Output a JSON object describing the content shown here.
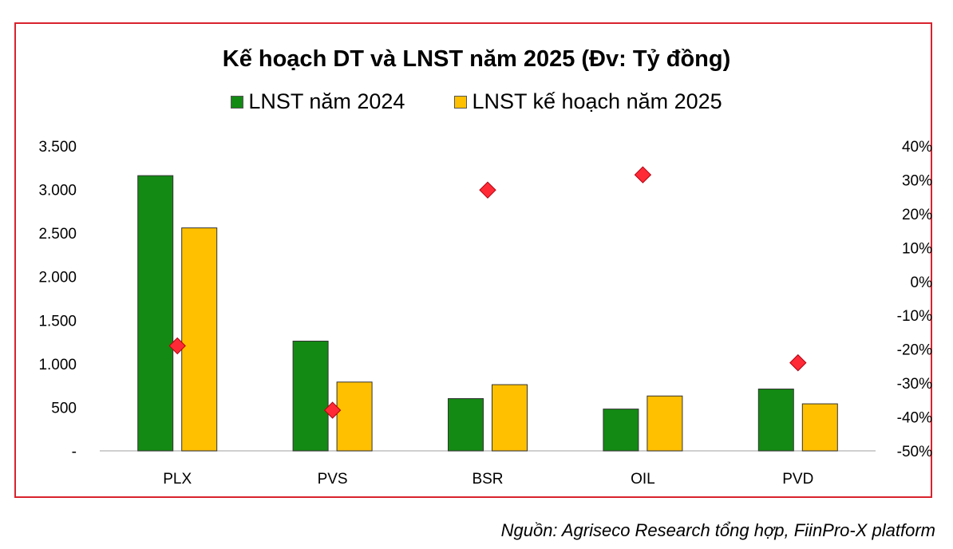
{
  "chart_data": {
    "type": "bar",
    "title": "Kế hoạch DT và LNST năm 2025 (Đv: Tỷ đồng)",
    "categories": [
      "PLX",
      "PVS",
      "BSR",
      "OIL",
      "PVD"
    ],
    "series": [
      {
        "name": "LNST năm 2024",
        "values": [
          3160,
          1260,
          600,
          480,
          710
        ],
        "color": "#138a13",
        "axis": "left",
        "kind": "bar"
      },
      {
        "name": "LNST kế hoạch năm 2025",
        "values": [
          2560,
          790,
          760,
          630,
          540
        ],
        "color": "#ffc000",
        "axis": "left",
        "kind": "bar"
      },
      {
        "values": [
          -19,
          -38,
          27,
          31.5,
          -24
        ],
        "color": "#ff2a36",
        "axis": "right",
        "kind": "diamond"
      }
    ],
    "left_axis": {
      "ylim": [
        0,
        3500
      ],
      "ticks": [
        "-",
        "500",
        "1.000",
        "1.500",
        "2.000",
        "2.500",
        "3.000",
        "3.500"
      ]
    },
    "right_axis": {
      "ylim": [
        -50,
        40
      ],
      "ticks": [
        "-50%",
        "-40%",
        "-30%",
        "-20%",
        "-10%",
        "0%",
        "10%",
        "20%",
        "30%",
        "40%"
      ]
    },
    "legend_position": "top-center",
    "grid": false,
    "frame_color": "#d9232d"
  },
  "source_note": "Nguồn: Agriseco Research tổng hợp, FiinPro-X platform"
}
